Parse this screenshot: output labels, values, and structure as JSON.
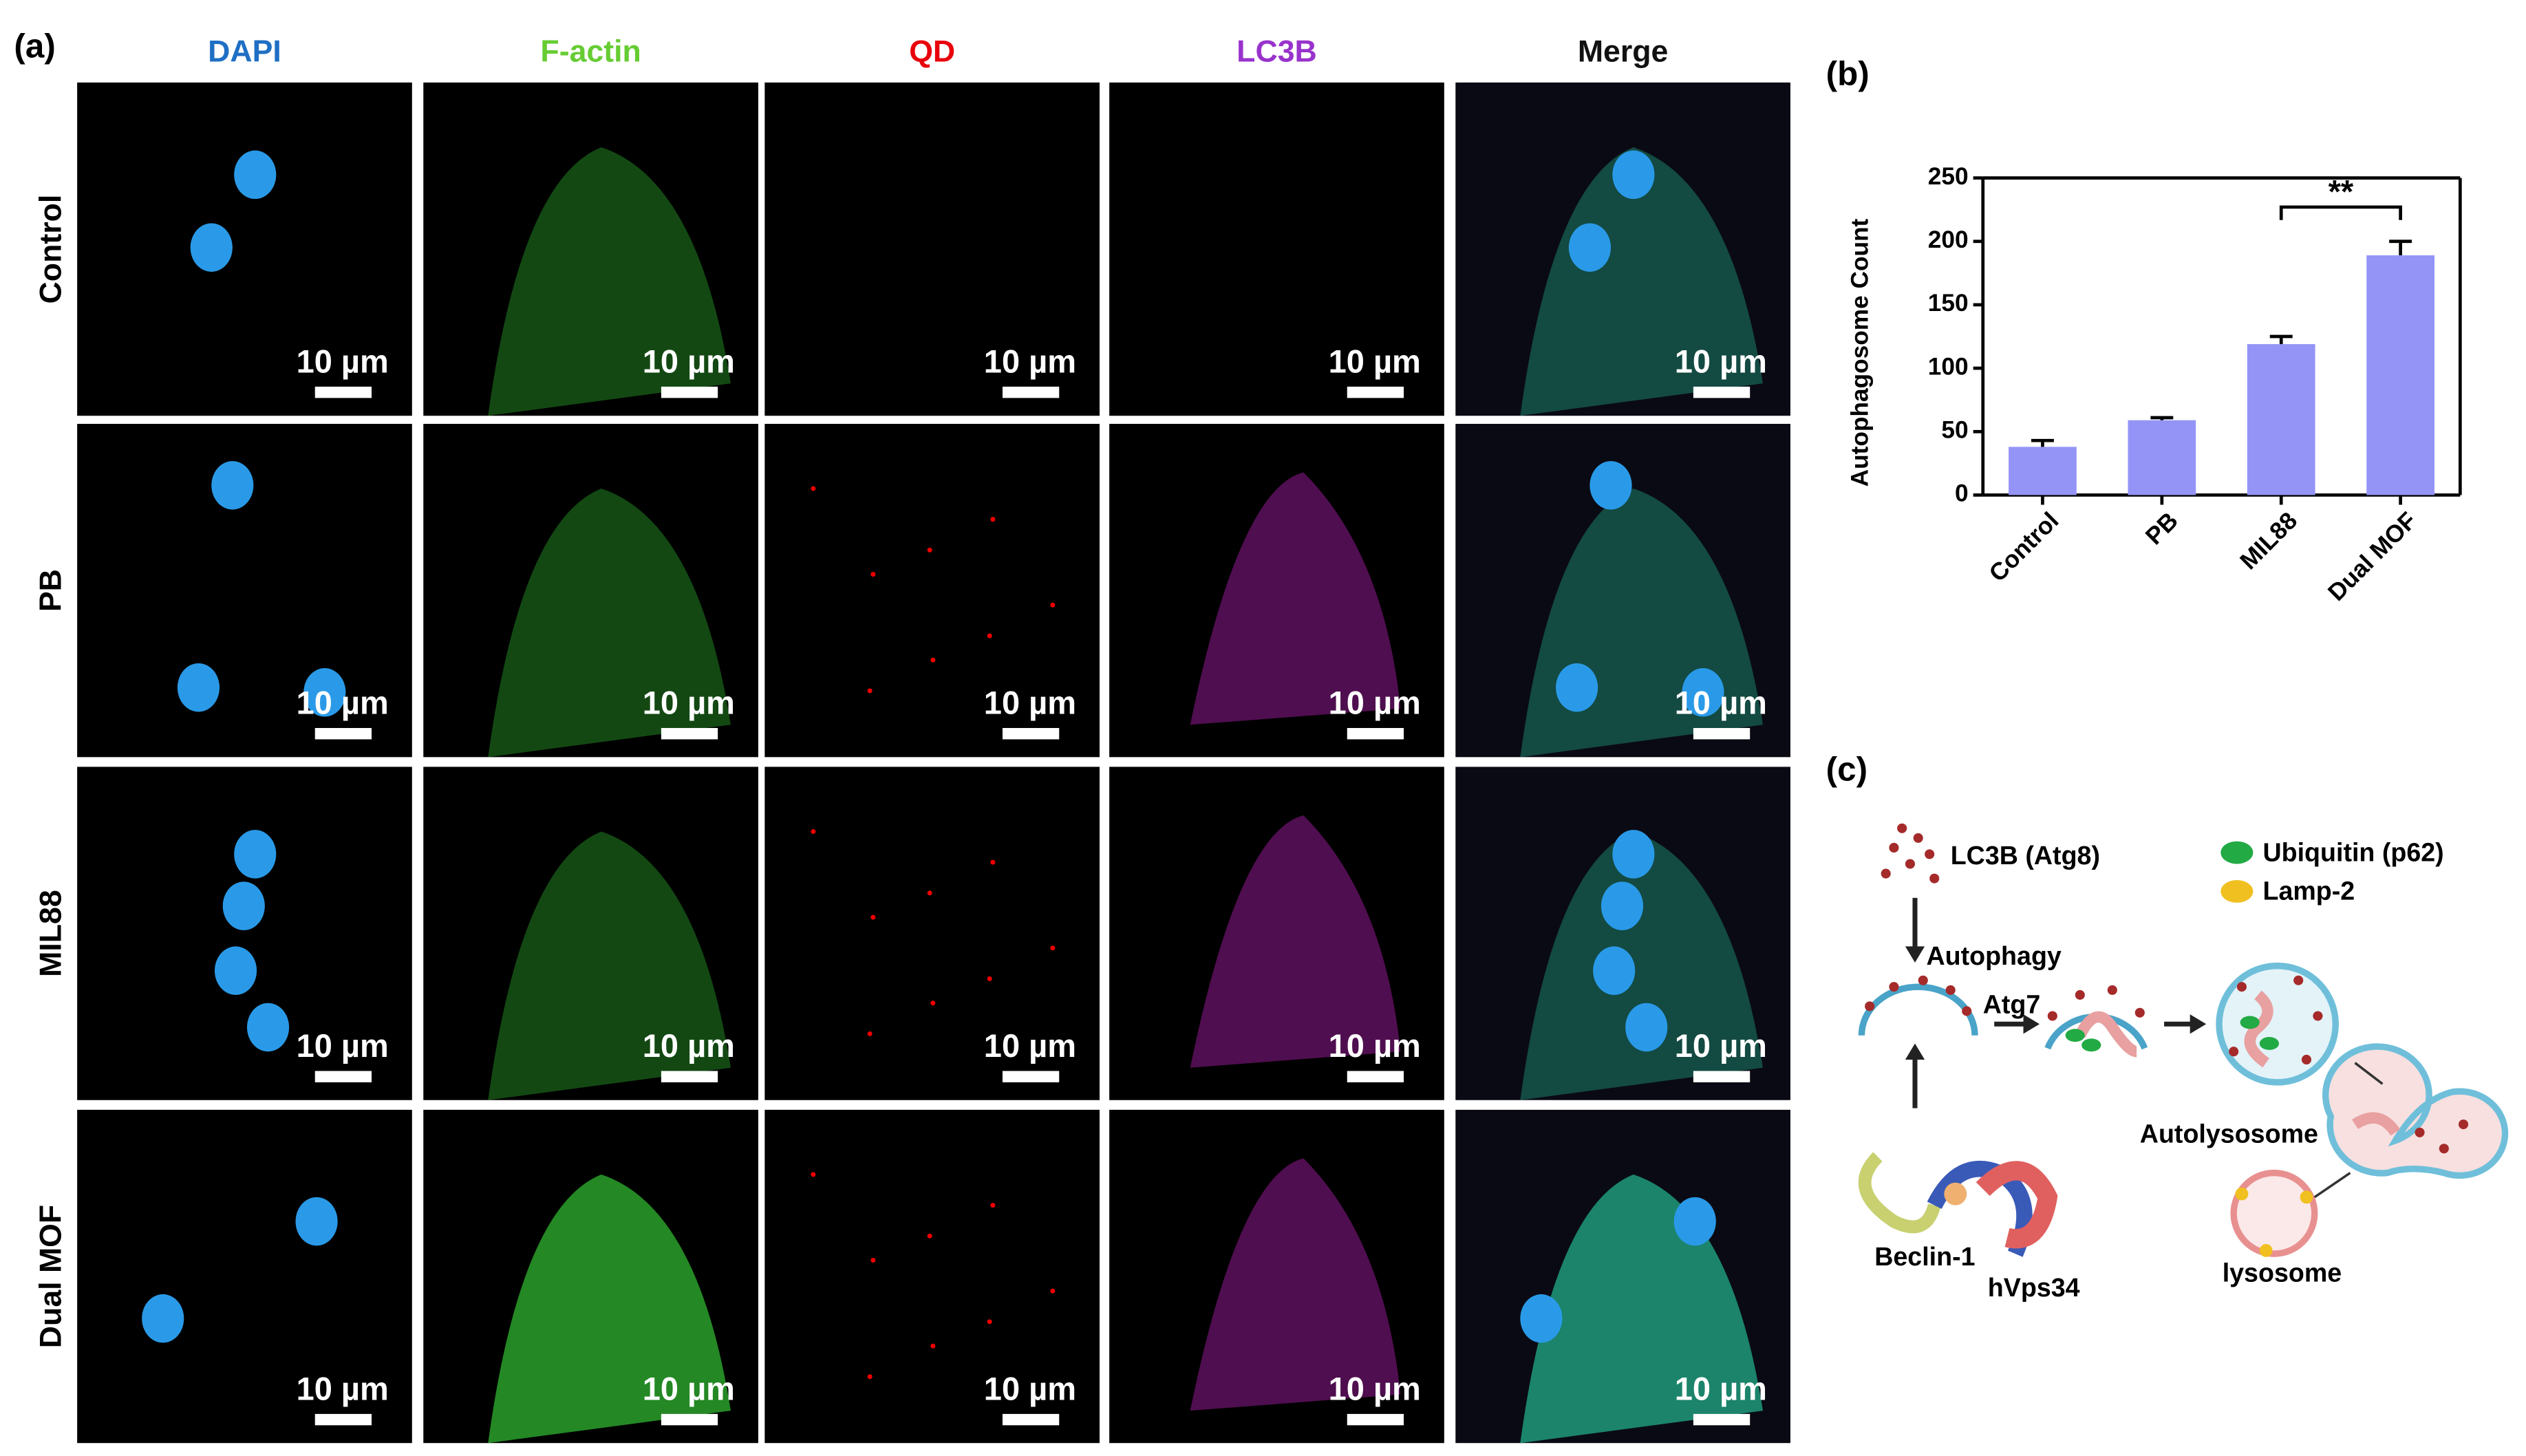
{
  "panel_a": {
    "label": "(a)",
    "columns": [
      "DAPI",
      "F-actin",
      "QD",
      "LC3B",
      "Merge"
    ],
    "rows": [
      "Control",
      "PB",
      "MIL88",
      "Dual MOF"
    ],
    "scale_bar": "10 µm"
  },
  "chart_data": {
    "type": "bar",
    "label": "(b)",
    "y_label": "Autophagosome Count",
    "categories": [
      "Control",
      "PB",
      "MIL88",
      "Dual MOF"
    ],
    "values": [
      38,
      59,
      119,
      189
    ],
    "errors": [
      5,
      2,
      6,
      11
    ],
    "color": "#9494f7",
    "ylim": [
      0,
      250
    ],
    "yticks": [
      0,
      50,
      100,
      150,
      200,
      250
    ],
    "significance": "**"
  },
  "panel_c": {
    "label": "(c)",
    "lc3b": "LC3B (Atg8)",
    "ubiquitin": "Ubiquitin (p62)",
    "lamp2": "Lamp-2",
    "autophagy": "Autophagy",
    "atg7": "Atg7",
    "autolysosome": "Autolysosome",
    "beclin": "Beclin-1",
    "hvps34": "hVps34",
    "lysosome": "lysosome"
  }
}
